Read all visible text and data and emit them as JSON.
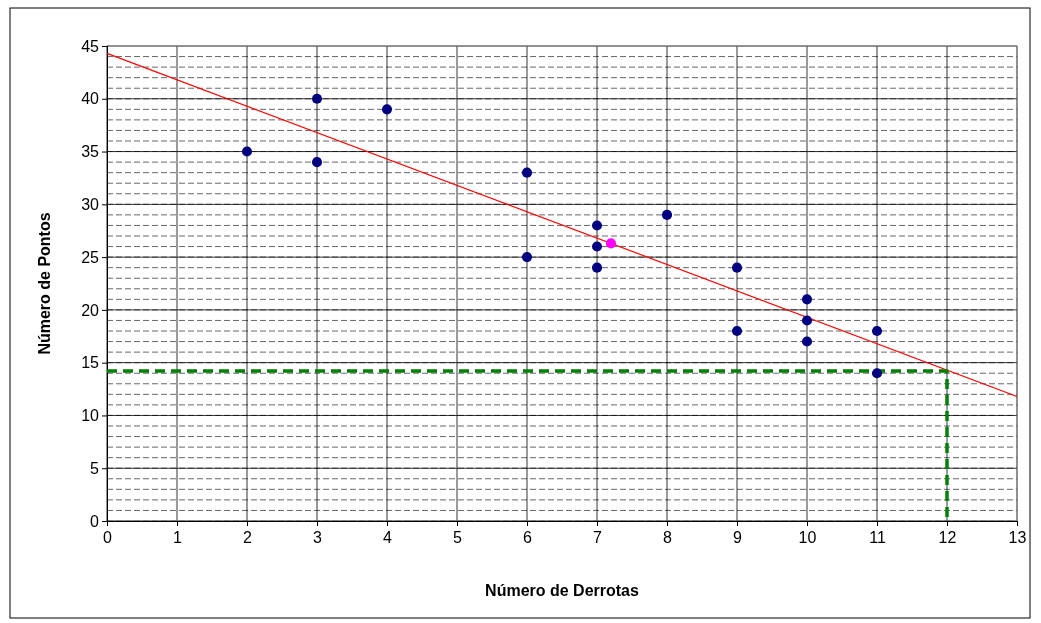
{
  "chart_data": {
    "type": "scatter",
    "xlabel": "Número de Derrotas",
    "ylabel": "Número de Pontos",
    "xlim": [
      0,
      13
    ],
    "ylim": [
      0,
      45
    ],
    "xticks": [
      0,
      1,
      2,
      3,
      4,
      5,
      6,
      7,
      8,
      9,
      10,
      11,
      12,
      13
    ],
    "yticks": [
      0,
      5,
      10,
      15,
      20,
      25,
      30,
      35,
      40,
      45
    ],
    "grid": true,
    "marker": "circle",
    "series": [
      {
        "type": "scatter",
        "color": "#000080",
        "x": [
          2,
          3,
          3,
          4,
          6,
          6,
          7,
          7,
          7,
          8,
          9,
          9,
          10,
          10,
          10,
          11,
          11
        ],
        "values": [
          35,
          40,
          34,
          39,
          33,
          25,
          28,
          26,
          24,
          29,
          24,
          18,
          21,
          19,
          17,
          18,
          14
        ]
      },
      {
        "type": "scatter",
        "color": "#ff00ff",
        "x": [
          7.2
        ],
        "values": [
          26.3
        ]
      },
      {
        "type": "line",
        "color": "#ff0000",
        "line_style": "solid",
        "marker": "none",
        "x": [
          0,
          13
        ],
        "values": [
          44.3,
          11.8
        ]
      },
      {
        "type": "line",
        "color": "#008000",
        "line_style": "dashed",
        "marker": "none",
        "x": [
          0,
          12,
          12
        ],
        "values": [
          14.2,
          14.2,
          0
        ]
      }
    ]
  }
}
